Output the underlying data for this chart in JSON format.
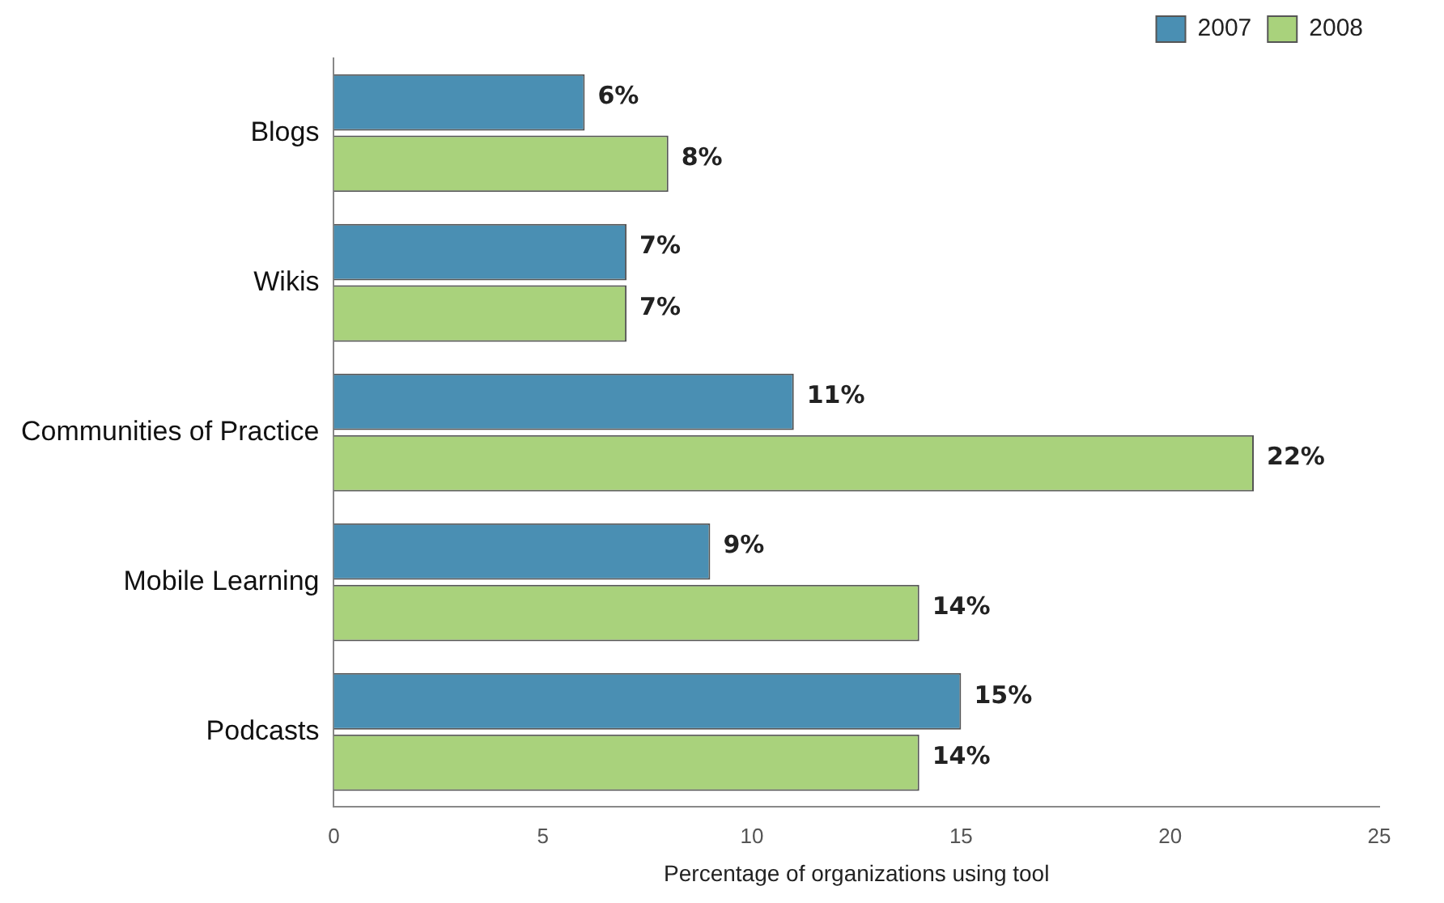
{
  "chart_data": {
    "type": "bar",
    "orientation": "horizontal",
    "xlabel": "Percentage of organizations using tool",
    "categories": [
      "Blogs",
      "Wikis",
      "Communities of Practice",
      "Mobile Learning",
      "Podcasts"
    ],
    "series": [
      {
        "name": "2007",
        "color": "#4a8fb3",
        "values": [
          6,
          7,
          11,
          9,
          15
        ],
        "value_labels": [
          "6%",
          "7%",
          "11%",
          "9%",
          "15%"
        ]
      },
      {
        "name": "2008",
        "color": "#a9d27c",
        "values": [
          8,
          7,
          22,
          14,
          14
        ],
        "value_labels": [
          "8%",
          "7%",
          "22%",
          "14%",
          "14%"
        ]
      }
    ],
    "xlim": [
      0,
      25
    ],
    "xticks": [
      0,
      5,
      10,
      15,
      20,
      25
    ],
    "grid": false,
    "legend": "top right"
  }
}
